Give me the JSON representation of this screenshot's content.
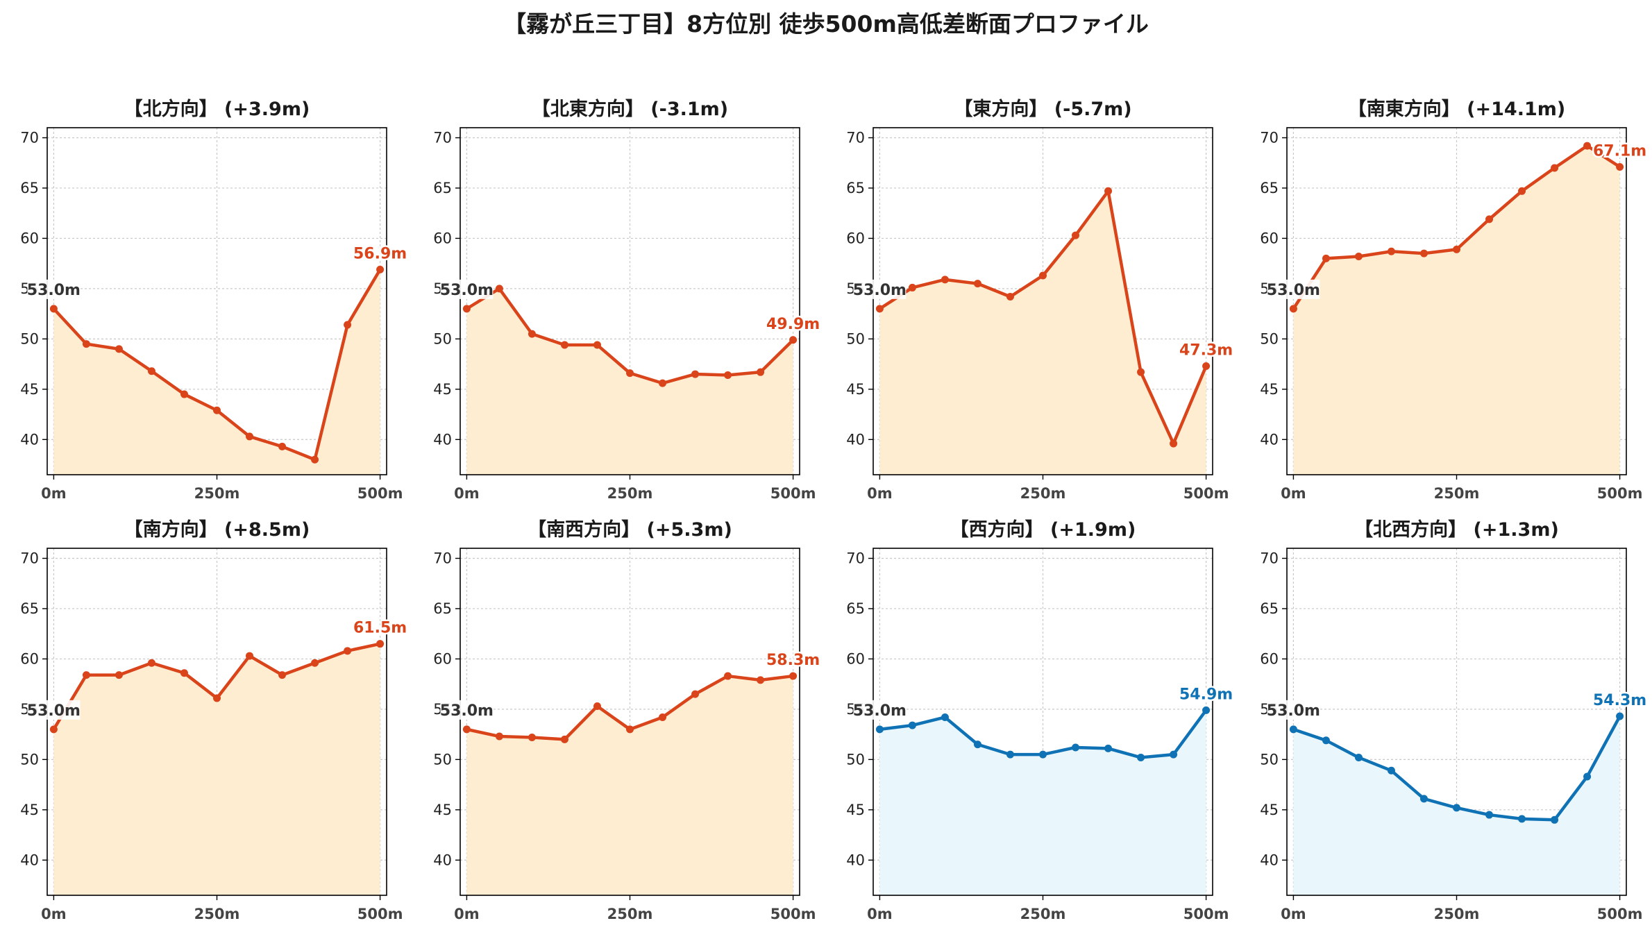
{
  "title": "【霧が丘三丁目】8方位別 徒歩500m高低差断面プロファイル",
  "colors": {
    "up_line": "#d9441a",
    "up_fill": "#ffedd2",
    "down_line": "#0f72b5",
    "down_fill": "#e9f6fc",
    "start_label": "#333333",
    "grid": "#c8c8c8"
  },
  "chart_data": [
    {
      "type": "line",
      "title": "【北方向】 (+3.9m)",
      "start_label": "53.0m",
      "end_label": "56.9m",
      "tone": "up",
      "x": [
        0,
        50,
        100,
        150,
        200,
        250,
        300,
        350,
        400,
        450,
        500
      ],
      "y": [
        53.0,
        49.5,
        49.0,
        46.8,
        44.5,
        42.9,
        40.3,
        39.3,
        38.0,
        51.4,
        56.9
      ],
      "ylim": [
        36.5,
        71
      ],
      "xlim": [
        -10,
        510
      ],
      "yticks": [
        40,
        45,
        50,
        55,
        60,
        65,
        70
      ],
      "xticks": [
        0,
        250,
        500
      ],
      "xticklabels": [
        "0m",
        "250m",
        "500m"
      ],
      "grid": true
    },
    {
      "type": "line",
      "title": "【北東方向】 (-3.1m)",
      "start_label": "53.0m",
      "end_label": "49.9m",
      "tone": "up",
      "x": [
        0,
        50,
        100,
        150,
        200,
        250,
        300,
        350,
        400,
        450,
        500
      ],
      "y": [
        53.0,
        55.0,
        50.5,
        49.4,
        49.4,
        46.6,
        45.6,
        46.5,
        46.4,
        46.7,
        49.9
      ],
      "ylim": [
        36.5,
        71
      ],
      "xlim": [
        -10,
        510
      ],
      "yticks": [
        40,
        45,
        50,
        55,
        60,
        65,
        70
      ],
      "xticks": [
        0,
        250,
        500
      ],
      "xticklabels": [
        "0m",
        "250m",
        "500m"
      ],
      "grid": true
    },
    {
      "type": "line",
      "title": "【東方向】 (-5.7m)",
      "start_label": "53.0m",
      "end_label": "47.3m",
      "tone": "up",
      "x": [
        0,
        50,
        100,
        150,
        200,
        250,
        300,
        350,
        400,
        450,
        500
      ],
      "y": [
        53.0,
        55.1,
        55.9,
        55.5,
        54.2,
        56.3,
        60.3,
        64.7,
        46.7,
        39.6,
        47.3
      ],
      "ylim": [
        36.5,
        71
      ],
      "xlim": [
        -10,
        510
      ],
      "yticks": [
        40,
        45,
        50,
        55,
        60,
        65,
        70
      ],
      "xticks": [
        0,
        250,
        500
      ],
      "xticklabels": [
        "0m",
        "250m",
        "500m"
      ],
      "grid": true
    },
    {
      "type": "line",
      "title": "【南東方向】 (+14.1m)",
      "start_label": "53.0m",
      "end_label": "67.1m",
      "tone": "up",
      "x": [
        0,
        50,
        100,
        150,
        200,
        250,
        300,
        350,
        400,
        450,
        500
      ],
      "y": [
        53.0,
        58.0,
        58.2,
        58.7,
        58.5,
        58.9,
        61.9,
        64.7,
        67.0,
        69.2,
        67.1
      ],
      "ylim": [
        36.5,
        71
      ],
      "xlim": [
        -10,
        510
      ],
      "yticks": [
        40,
        45,
        50,
        55,
        60,
        65,
        70
      ],
      "xticks": [
        0,
        250,
        500
      ],
      "xticklabels": [
        "0m",
        "250m",
        "500m"
      ],
      "grid": true
    },
    {
      "type": "line",
      "title": "【南方向】 (+8.5m)",
      "start_label": "53.0m",
      "end_label": "61.5m",
      "tone": "up",
      "x": [
        0,
        50,
        100,
        150,
        200,
        250,
        300,
        350,
        400,
        450,
        500
      ],
      "y": [
        53.0,
        58.4,
        58.4,
        59.6,
        58.6,
        56.1,
        60.3,
        58.4,
        59.6,
        60.8,
        61.5
      ],
      "ylim": [
        36.5,
        71
      ],
      "xlim": [
        -10,
        510
      ],
      "yticks": [
        40,
        45,
        50,
        55,
        60,
        65,
        70
      ],
      "xticks": [
        0,
        250,
        500
      ],
      "xticklabels": [
        "0m",
        "250m",
        "500m"
      ],
      "grid": true
    },
    {
      "type": "line",
      "title": "【南西方向】 (+5.3m)",
      "start_label": "53.0m",
      "end_label": "58.3m",
      "tone": "up",
      "x": [
        0,
        50,
        100,
        150,
        200,
        250,
        300,
        350,
        400,
        450,
        500
      ],
      "y": [
        53.0,
        52.3,
        52.2,
        52.0,
        55.3,
        53.0,
        54.2,
        56.5,
        58.3,
        57.9,
        58.3
      ],
      "ylim": [
        36.5,
        71
      ],
      "xlim": [
        -10,
        510
      ],
      "yticks": [
        40,
        45,
        50,
        55,
        60,
        65,
        70
      ],
      "xticks": [
        0,
        250,
        500
      ],
      "xticklabels": [
        "0m",
        "250m",
        "500m"
      ],
      "grid": true
    },
    {
      "type": "line",
      "title": "【西方向】 (+1.9m)",
      "start_label": "53.0m",
      "end_label": "54.9m",
      "tone": "down",
      "x": [
        0,
        50,
        100,
        150,
        200,
        250,
        300,
        350,
        400,
        450,
        500
      ],
      "y": [
        53.0,
        53.4,
        54.2,
        51.5,
        50.5,
        50.5,
        51.2,
        51.1,
        50.2,
        50.5,
        54.9
      ],
      "ylim": [
        36.5,
        71
      ],
      "xlim": [
        -10,
        510
      ],
      "yticks": [
        40,
        45,
        50,
        55,
        60,
        65,
        70
      ],
      "xticks": [
        0,
        250,
        500
      ],
      "xticklabels": [
        "0m",
        "250m",
        "500m"
      ],
      "grid": true
    },
    {
      "type": "line",
      "title": "【北西方向】 (+1.3m)",
      "start_label": "53.0m",
      "end_label": "54.3m",
      "tone": "down",
      "x": [
        0,
        50,
        100,
        150,
        200,
        250,
        300,
        350,
        400,
        450,
        500
      ],
      "y": [
        53.0,
        51.9,
        50.2,
        48.9,
        46.1,
        45.2,
        44.5,
        44.1,
        44.0,
        48.3,
        54.3
      ],
      "ylim": [
        36.5,
        71
      ],
      "xlim": [
        -10,
        510
      ],
      "yticks": [
        40,
        45,
        50,
        55,
        60,
        65,
        70
      ],
      "xticks": [
        0,
        250,
        500
      ],
      "xticklabels": [
        "0m",
        "250m",
        "500m"
      ],
      "grid": true
    }
  ]
}
